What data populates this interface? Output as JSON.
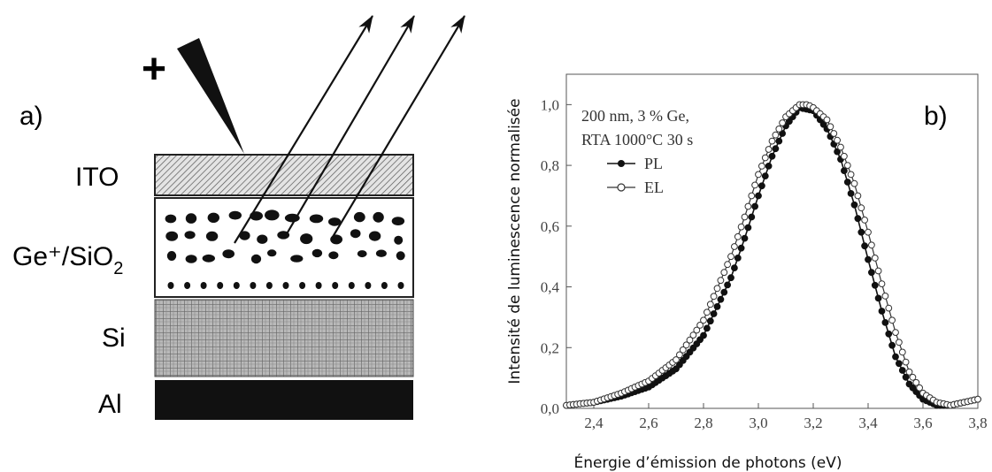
{
  "panel_a": {
    "label": "a)",
    "plus_sign": "+",
    "layers": [
      "ITO",
      "Ge⁺/SiO",
      "Si",
      "Al"
    ],
    "ge_sub": "2"
  },
  "panel_b": {
    "label": "b)"
  },
  "chart_data": {
    "type": "line",
    "xlabel": "Énergie d’émission de photons (eV)",
    "ylabel": "Intensité de luminescence normalisée",
    "xlim": [
      2.3,
      3.8
    ],
    "ylim": [
      0.0,
      1.1
    ],
    "xticks": [
      "2,4",
      "2,6",
      "2,8",
      "3,0",
      "3,2",
      "3,4",
      "3,6",
      "3,8"
    ],
    "yticks": [
      "0,0",
      "0,2",
      "0,4",
      "0,6",
      "0,8",
      "1,0"
    ],
    "annotation": [
      "200 nm, 3 % Ge,",
      "RTA 1000°C 30 s"
    ],
    "legend_position": "top-left",
    "series": [
      {
        "name": "PL",
        "marker": "filled-circle",
        "x": [
          2.3,
          2.4,
          2.5,
          2.6,
          2.7,
          2.8,
          2.9,
          2.95,
          3.0,
          3.05,
          3.1,
          3.15,
          3.2,
          3.25,
          3.3,
          3.35,
          3.4,
          3.45,
          3.5,
          3.55,
          3.6,
          3.65,
          3.7,
          3.75,
          3.8
        ],
        "y": [
          0.01,
          0.02,
          0.04,
          0.07,
          0.13,
          0.24,
          0.43,
          0.56,
          0.7,
          0.83,
          0.93,
          0.99,
          0.98,
          0.92,
          0.82,
          0.67,
          0.49,
          0.32,
          0.17,
          0.08,
          0.03,
          0.01,
          0.01,
          0.02,
          0.03
        ]
      },
      {
        "name": "EL",
        "marker": "open-circle",
        "x": [
          2.3,
          2.4,
          2.5,
          2.6,
          2.7,
          2.8,
          2.9,
          2.95,
          3.0,
          3.05,
          3.1,
          3.15,
          3.18,
          3.2,
          3.25,
          3.3,
          3.35,
          3.4,
          3.45,
          3.5,
          3.55,
          3.6,
          3.65,
          3.7,
          3.75,
          3.8
        ],
        "y": [
          0.01,
          0.02,
          0.05,
          0.09,
          0.16,
          0.29,
          0.5,
          0.63,
          0.77,
          0.88,
          0.96,
          1.0,
          1.0,
          0.99,
          0.95,
          0.86,
          0.74,
          0.58,
          0.41,
          0.25,
          0.12,
          0.05,
          0.02,
          0.01,
          0.02,
          0.03
        ]
      }
    ]
  }
}
